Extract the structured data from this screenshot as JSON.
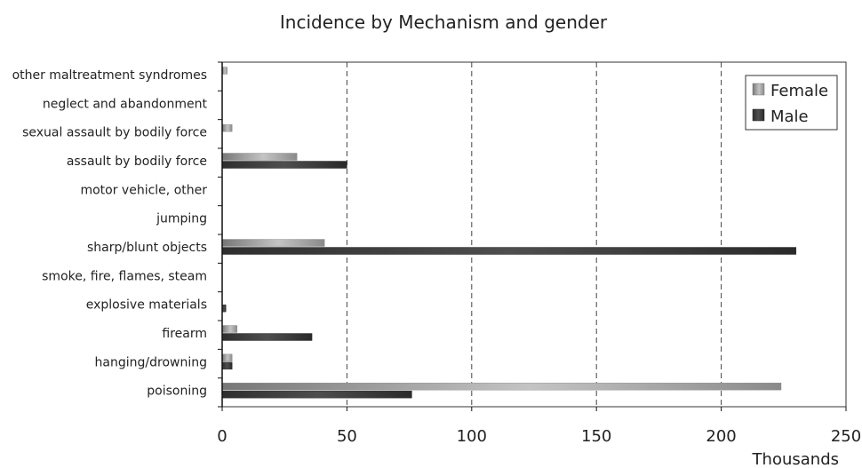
{
  "chart_data": {
    "type": "bar",
    "orientation": "horizontal",
    "title": "Incidence by Mechanism and gender",
    "xlabel": "Thousands",
    "ylabel": "",
    "xlim": [
      0,
      250
    ],
    "xticks": [
      "0",
      "50",
      "100",
      "150",
      "200",
      "250"
    ],
    "grid": "vertical dashed",
    "legend_position": "top-right",
    "categories": [
      "other maltreatment syndromes",
      "neglect and abandonment",
      "sexual assault by bodily force",
      "assault by bodily force",
      "motor vehicle, other",
      "jumping",
      "sharp/blunt objects",
      "smoke, fire, flames, steam",
      "explosive materials",
      "firearm",
      "hanging/drowning",
      "poisoning"
    ],
    "series": [
      {
        "name": "Female",
        "color": "#a8a8a8",
        "values": [
          2,
          0,
          4,
          30,
          0,
          0,
          41,
          0,
          0,
          6,
          4,
          224
        ]
      },
      {
        "name": "Male",
        "color": "#3c3c3c",
        "values": [
          0,
          0,
          0,
          50,
          0,
          0,
          230,
          0,
          1.5,
          36,
          4,
          76
        ]
      }
    ]
  }
}
